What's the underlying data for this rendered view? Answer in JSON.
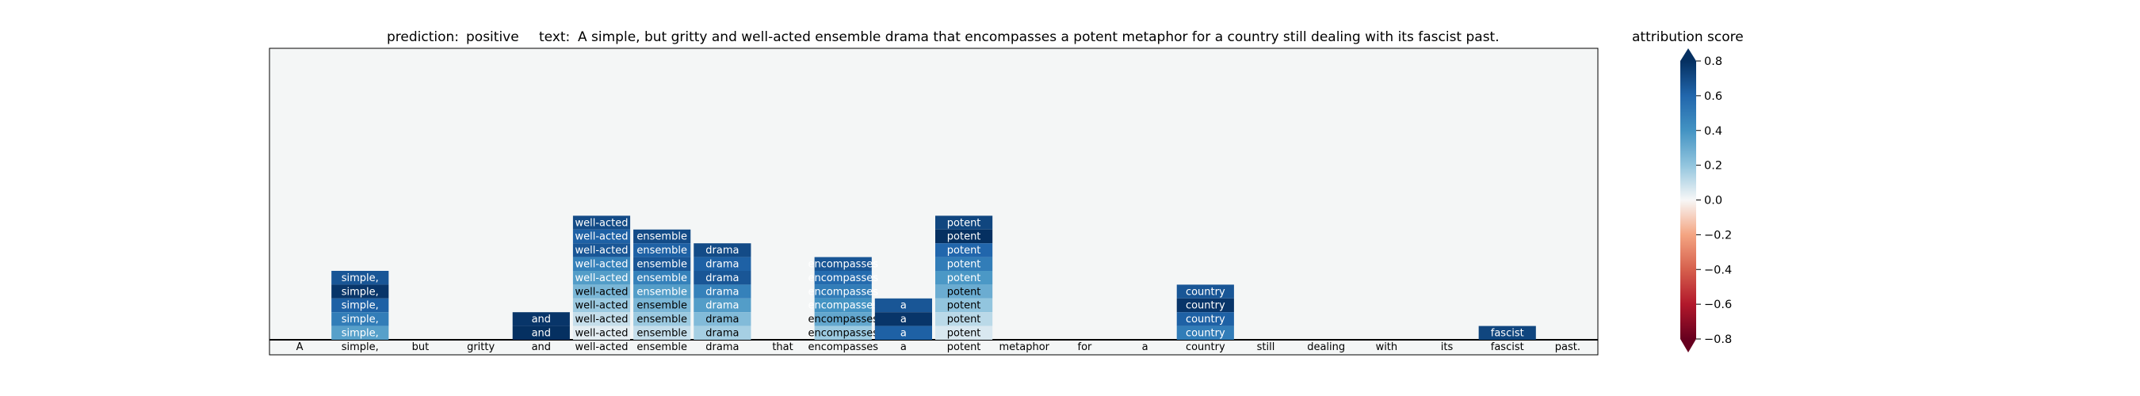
{
  "chart_data": {
    "type": "heatmap",
    "title": {
      "prediction_label": "prediction:",
      "prediction_value": "positive",
      "text_label": "text:",
      "text_value": "A simple, but gritty and well-acted ensemble drama that encompasses a potent metaphor for a country still dealing with its fascist past."
    },
    "tokens": [
      "A",
      "simple,",
      "but",
      "gritty",
      "and",
      "well-acted",
      "ensemble",
      "drama",
      "that",
      "encompasses",
      "a",
      "potent",
      "metaphor",
      "for",
      "a",
      "country",
      "still",
      "dealing",
      "with",
      "its",
      "fascist",
      "past."
    ],
    "layers_count": 21,
    "columns": [
      {
        "token": "simple,",
        "scores": [
          0.66,
          0.78,
          0.62,
          0.5,
          0.35
        ]
      },
      {
        "token": "and",
        "scores": [
          0.78,
          0.8
        ]
      },
      {
        "token": "well-acted",
        "scores": [
          0.7,
          0.62,
          0.66,
          0.48,
          0.36,
          0.26,
          0.18,
          0.1,
          0.04
        ]
      },
      {
        "token": "ensemble",
        "scores": [
          0.7,
          0.62,
          0.66,
          0.48,
          0.36,
          0.26,
          0.18,
          0.1
        ]
      },
      {
        "token": "drama",
        "scores": [
          0.7,
          0.62,
          0.66,
          0.48,
          0.36,
          0.24,
          0.16
        ]
      },
      {
        "token": "encompasses",
        "scores": [
          0.66,
          0.58,
          0.5,
          0.4,
          0.32,
          0.18
        ]
      },
      {
        "token": "potent",
        "scores": [
          0.72,
          0.8,
          0.6,
          0.5,
          0.38,
          0.3,
          0.2,
          0.12,
          0.06
        ]
      },
      {
        "token": "a",
        "scores": [
          0.66,
          0.78,
          0.62
        ]
      },
      {
        "token": "country",
        "scores": [
          0.66,
          0.78,
          0.62,
          0.5
        ]
      },
      {
        "token": "fascist",
        "scores": [
          0.72
        ]
      }
    ],
    "colorbar": {
      "label": "attribution score",
      "ticks": [
        0.8,
        0.6,
        0.4,
        0.2,
        0.0,
        -0.2,
        -0.4,
        -0.6,
        -0.8
      ],
      "vmin": -0.8,
      "vmax": 0.8,
      "colormap": "RdBu"
    }
  }
}
